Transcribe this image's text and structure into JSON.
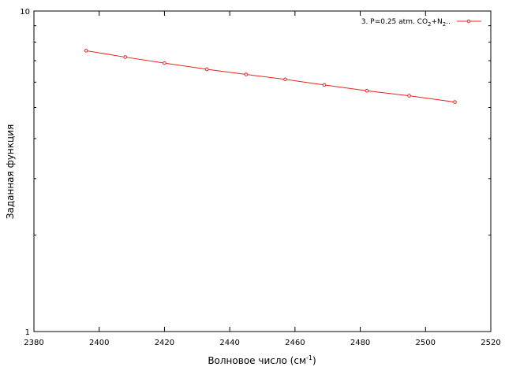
{
  "chart_data": {
    "type": "line",
    "xlabel": "Волновое число (см",
    "xlabel_sup": "-1",
    "xlabel_tail": ")",
    "ylabel": "Заданная функция",
    "xlim": [
      2380,
      2520
    ],
    "ylim": [
      1,
      10
    ],
    "yscale": "log",
    "x_ticks": [
      "2380",
      "2400",
      "2420",
      "2440",
      "2460",
      "2480",
      "2500",
      "2520"
    ],
    "y_ticks": [
      "1",
      "10"
    ],
    "grid": false,
    "legend_position": "top-right",
    "series": [
      {
        "name": "3. P=0.25 atm. CO₂+N₂..",
        "legend_main": "3. P=0.25 atm. CO",
        "legend_sub1": "2",
        "legend_mid": "+N",
        "legend_sub2": "2",
        "legend_tail": "..",
        "color": "#e8231e",
        "marker": "open-circle",
        "x": [
          2396,
          2408,
          2420,
          2433,
          2445,
          2457,
          2469,
          2482,
          2495,
          2509
        ],
        "y": [
          7.52,
          7.18,
          6.88,
          6.58,
          6.34,
          6.12,
          5.88,
          5.64,
          5.44,
          5.2
        ]
      }
    ]
  }
}
